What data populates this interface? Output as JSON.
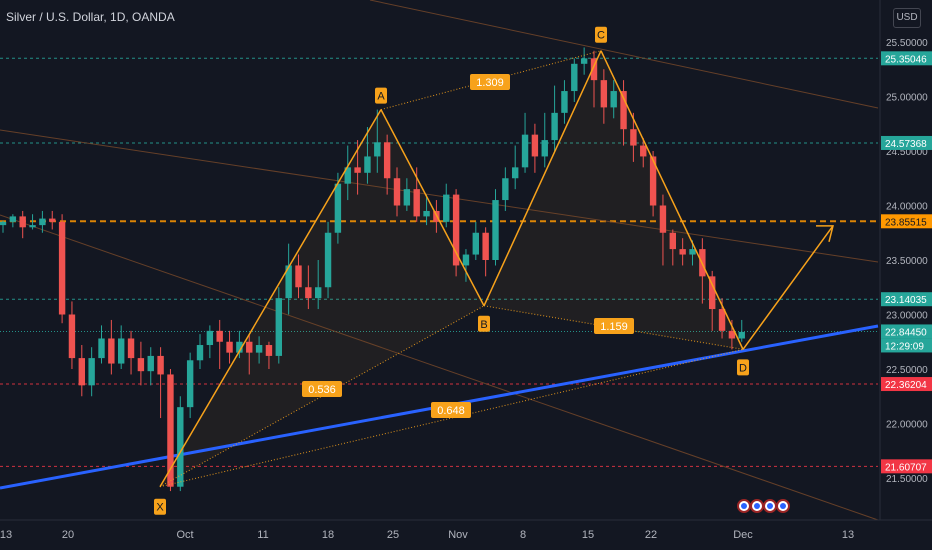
{
  "header": {
    "title": "Silver / U.S. Dollar, 1D, OANDA",
    "currency": "USD"
  },
  "colors": {
    "background": "#131722",
    "up": "#26a69a",
    "down": "#ef5350",
    "pattern": "#f7a21b",
    "trendline": "#2962ff"
  },
  "chart_data": {
    "type": "candlestick",
    "symbol": "XAGUSD",
    "timeframe": "1D",
    "ylim": [
      21.25,
      25.7
    ],
    "y_ticks": [
      "21.50000",
      "22.00000",
      "22.50000",
      "23.00000",
      "23.50000",
      "24.00000",
      "24.50000",
      "25.00000",
      "25.50000"
    ],
    "x_ticks": [
      "13",
      "20",
      "Oct",
      "11",
      "18",
      "25",
      "Nov",
      "8",
      "15",
      "22",
      "Dec",
      "13"
    ],
    "price_labels": [
      {
        "value": 25.35046,
        "text": "25.35046",
        "color": "#26a69a"
      },
      {
        "value": 24.57368,
        "text": "24.57368",
        "color": "#26a69a"
      },
      {
        "value": 23.85515,
        "text": "23.85515",
        "color": "#ff9800"
      },
      {
        "value": 23.14035,
        "text": "23.14035",
        "color": "#26a69a"
      },
      {
        "value": 22.8445,
        "text": "22.84450",
        "color": "#26a69a"
      },
      {
        "value": 22.8445,
        "text": "12:29:09",
        "color": "#26a69a"
      },
      {
        "value": 22.36204,
        "text": "22.36204",
        "color": "#f23645"
      },
      {
        "value": 21.60707,
        "text": "21.60707",
        "color": "#f23645"
      }
    ],
    "pattern": {
      "points": [
        {
          "label": "X",
          "value": 21.42
        },
        {
          "label": "A",
          "value": 24.88
        },
        {
          "label": "B",
          "value": 23.08
        },
        {
          "label": "C",
          "value": 25.42
        },
        {
          "label": "D",
          "value": 22.68
        }
      ],
      "ratios": [
        "0.536",
        "1.309",
        "0.648",
        "1.159"
      ],
      "target": 23.85
    },
    "candles": [
      [
        23.82,
        23.85,
        23.75,
        23.86
      ],
      [
        23.85,
        23.9,
        23.8,
        23.92
      ],
      [
        23.9,
        23.8,
        23.7,
        23.95
      ],
      [
        23.8,
        23.82,
        23.78,
        23.92
      ],
      [
        23.82,
        23.88,
        23.75,
        23.95
      ],
      [
        23.88,
        23.85,
        23.78,
        23.95
      ],
      [
        23.85,
        23.0,
        22.92,
        23.92
      ],
      [
        23.0,
        22.6,
        22.5,
        23.12
      ],
      [
        22.6,
        22.35,
        22.25,
        22.72
      ],
      [
        22.35,
        22.6,
        22.25,
        22.7
      ],
      [
        22.6,
        22.78,
        22.55,
        22.9
      ],
      [
        22.78,
        22.55,
        22.45,
        22.95
      ],
      [
        22.55,
        22.78,
        22.5,
        22.9
      ],
      [
        22.78,
        22.6,
        22.45,
        22.85
      ],
      [
        22.6,
        22.48,
        22.35,
        22.75
      ],
      [
        22.48,
        22.62,
        22.35,
        22.7
      ],
      [
        22.62,
        22.45,
        22.05,
        22.7
      ],
      [
        22.45,
        21.42,
        21.38,
        22.5
      ],
      [
        21.42,
        22.15,
        21.38,
        22.25
      ],
      [
        22.15,
        22.58,
        22.05,
        22.65
      ],
      [
        22.58,
        22.72,
        22.5,
        22.82
      ],
      [
        22.72,
        22.85,
        22.6,
        22.9
      ],
      [
        22.85,
        22.75,
        22.5,
        22.95
      ],
      [
        22.75,
        22.65,
        22.55,
        22.85
      ],
      [
        22.65,
        22.75,
        22.6,
        22.85
      ],
      [
        22.75,
        22.65,
        22.45,
        22.82
      ],
      [
        22.65,
        22.72,
        22.55,
        22.8
      ],
      [
        22.72,
        22.62,
        22.5,
        22.75
      ],
      [
        22.62,
        23.15,
        22.55,
        23.25
      ],
      [
        23.15,
        23.45,
        23.0,
        23.65
      ],
      [
        23.45,
        23.25,
        23.15,
        23.55
      ],
      [
        23.25,
        23.15,
        23.05,
        23.45
      ],
      [
        23.15,
        23.25,
        23.05,
        23.5
      ],
      [
        23.25,
        23.75,
        23.15,
        23.85
      ],
      [
        23.75,
        24.2,
        23.65,
        24.3
      ],
      [
        24.2,
        24.35,
        24.05,
        24.55
      ],
      [
        24.35,
        24.3,
        24.1,
        24.6
      ],
      [
        24.3,
        24.45,
        24.2,
        24.72
      ],
      [
        24.45,
        24.58,
        24.3,
        24.88
      ],
      [
        24.58,
        24.25,
        24.1,
        24.65
      ],
      [
        24.25,
        24.0,
        23.9,
        24.35
      ],
      [
        24.0,
        24.15,
        23.95,
        24.25
      ],
      [
        24.15,
        23.9,
        23.85,
        24.35
      ],
      [
        23.9,
        23.95,
        23.82,
        24.1
      ],
      [
        23.95,
        23.85,
        23.75,
        24.05
      ],
      [
        23.85,
        24.1,
        23.8,
        24.2
      ],
      [
        24.1,
        23.45,
        23.35,
        24.15
      ],
      [
        23.45,
        23.55,
        23.3,
        23.6
      ],
      [
        23.55,
        23.75,
        23.5,
        23.85
      ],
      [
        23.75,
        23.5,
        23.35,
        23.8
      ],
      [
        23.5,
        24.05,
        23.45,
        24.15
      ],
      [
        24.05,
        24.25,
        23.95,
        24.35
      ],
      [
        24.25,
        24.35,
        24.15,
        24.55
      ],
      [
        24.35,
        24.65,
        24.3,
        24.85
      ],
      [
        24.65,
        24.45,
        24.3,
        24.75
      ],
      [
        24.45,
        24.6,
        24.35,
        24.85
      ],
      [
        24.6,
        24.85,
        24.5,
        25.1
      ],
      [
        24.85,
        25.05,
        24.75,
        25.15
      ],
      [
        25.05,
        25.3,
        24.95,
        25.35
      ],
      [
        25.3,
        25.35,
        25.2,
        25.45
      ],
      [
        25.35,
        25.15,
        24.9,
        25.42
      ],
      [
        25.15,
        24.9,
        24.75,
        25.25
      ],
      [
        24.9,
        25.05,
        24.8,
        25.15
      ],
      [
        25.05,
        24.7,
        24.55,
        25.15
      ],
      [
        24.7,
        24.55,
        24.4,
        24.85
      ],
      [
        24.55,
        24.45,
        24.35,
        24.62
      ],
      [
        24.45,
        24.0,
        23.9,
        24.5
      ],
      [
        24.0,
        23.75,
        23.45,
        24.1
      ],
      [
        23.75,
        23.6,
        23.45,
        23.78
      ],
      [
        23.6,
        23.55,
        23.45,
        23.7
      ],
      [
        23.55,
        23.6,
        23.45,
        23.68
      ],
      [
        23.6,
        23.35,
        23.1,
        23.7
      ],
      [
        23.35,
        23.05,
        22.85,
        23.4
      ],
      [
        23.05,
        22.85,
        22.78,
        23.15
      ],
      [
        22.85,
        22.78,
        22.68,
        22.95
      ],
      [
        22.78,
        22.84,
        22.75,
        22.95
      ]
    ]
  }
}
